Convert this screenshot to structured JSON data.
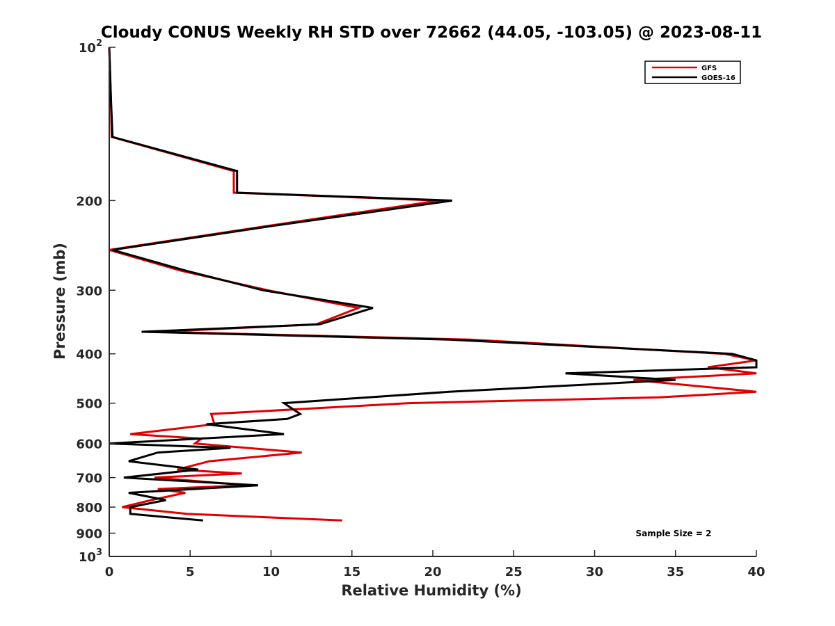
{
  "chart_data": {
    "type": "line",
    "title": "Cloudy CONUS Weekly RH STD over 72662 (44.05, -103.05) @ 2023-08-11",
    "xlabel": "Relative Humidity (%)",
    "ylabel": "Pressure (mb)",
    "xlim": [
      0,
      40
    ],
    "ylim": [
      100,
      1000
    ],
    "y_scale": "log",
    "y_reversed": true,
    "grid": false,
    "legend_position": "top-right",
    "x_ticks": [
      "0",
      "5",
      "10",
      "15",
      "20",
      "25",
      "30",
      "35",
      "40"
    ],
    "y_ticks": [
      {
        "value": 100,
        "base": "10",
        "exp": "2"
      },
      {
        "value": 200,
        "label": "200"
      },
      {
        "value": 300,
        "label": "300"
      },
      {
        "value": 400,
        "label": "400"
      },
      {
        "value": 500,
        "label": "500"
      },
      {
        "value": 600,
        "label": "600"
      },
      {
        "value": 700,
        "label": "700"
      },
      {
        "value": 800,
        "label": "800"
      },
      {
        "value": 900,
        "label": "900"
      },
      {
        "value": 1000,
        "base": "10",
        "exp": "3"
      }
    ],
    "series": [
      {
        "name": "GFS",
        "color": "#e00000",
        "points": [
          [
            0.0,
            100
          ],
          [
            0.1,
            125
          ],
          [
            0.15,
            150
          ],
          [
            7.7,
            175
          ],
          [
            7.7,
            193
          ],
          [
            20.4,
            200
          ],
          [
            9.5,
            225
          ],
          [
            0.0,
            250
          ],
          [
            4.5,
            275
          ],
          [
            9.8,
            300
          ],
          [
            15.4,
            325
          ],
          [
            12.8,
            350
          ],
          [
            3.0,
            362
          ],
          [
            22.3,
            375
          ],
          [
            38.0,
            400
          ],
          [
            40.0,
            412
          ],
          [
            37.0,
            425
          ],
          [
            40.0,
            437
          ],
          [
            32.4,
            450
          ],
          [
            40.0,
            475
          ],
          [
            34.0,
            487
          ],
          [
            18.5,
            500
          ],
          [
            6.3,
            525
          ],
          [
            6.5,
            550
          ],
          [
            1.3,
            575
          ],
          [
            5.7,
            587
          ],
          [
            5.3,
            600
          ],
          [
            11.9,
            625
          ],
          [
            6.2,
            650
          ],
          [
            4.2,
            675
          ],
          [
            8.2,
            687
          ],
          [
            2.8,
            700
          ],
          [
            8.5,
            725
          ],
          [
            3.0,
            737
          ],
          [
            4.7,
            750
          ],
          [
            2.6,
            775
          ],
          [
            0.8,
            800
          ],
          [
            4.8,
            825
          ],
          [
            14.4,
            850
          ]
        ]
      },
      {
        "name": "GOES-16",
        "color": "#000000",
        "points": [
          [
            0.0,
            100
          ],
          [
            0.1,
            125
          ],
          [
            0.2,
            150
          ],
          [
            7.9,
            175
          ],
          [
            7.9,
            193
          ],
          [
            21.2,
            200
          ],
          [
            9.8,
            225
          ],
          [
            0.2,
            250
          ],
          [
            4.8,
            275
          ],
          [
            9.5,
            300
          ],
          [
            16.3,
            325
          ],
          [
            13.0,
            350
          ],
          [
            2.0,
            362
          ],
          [
            21.0,
            375
          ],
          [
            38.5,
            400
          ],
          [
            40.0,
            412
          ],
          [
            40.0,
            425
          ],
          [
            28.2,
            437
          ],
          [
            35.0,
            450
          ],
          [
            21.0,
            475
          ],
          [
            10.8,
            500
          ],
          [
            11.8,
            525
          ],
          [
            11.0,
            537
          ],
          [
            6.0,
            550
          ],
          [
            10.8,
            575
          ],
          [
            0.0,
            600
          ],
          [
            7.5,
            612
          ],
          [
            3.0,
            625
          ],
          [
            1.2,
            650
          ],
          [
            5.5,
            675
          ],
          [
            0.9,
            700
          ],
          [
            9.2,
            725
          ],
          [
            1.2,
            750
          ],
          [
            3.5,
            775
          ],
          [
            1.3,
            800
          ],
          [
            1.3,
            825
          ],
          [
            5.8,
            850
          ]
        ]
      }
    ],
    "annotation": "Sample Size = 2"
  }
}
